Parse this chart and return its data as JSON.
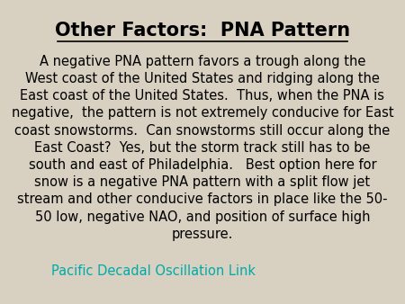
{
  "title": "Other Factors:  PNA Pattern",
  "body_text": "A negative PNA pattern favors a trough along the\nWest coast of the United States and ridging along the\nEast coast of the United States.  Thus, when the PNA is\nnegative,  the pattern is not extremely conducive for East\ncoast snowstorms.  Can snowstorms still occur along the\nEast Coast?  Yes, but the storm track still has to be\nsouth and east of Philadelphia.   Best option here for\nsnow is a negative PNA pattern with a split flow jet\nstream and other conducive factors in place like the 50-\n50 low, negative NAO, and position of surface high\npressure.",
  "link_text": "Pacific Decadal Oscillation Link",
  "background_color": "#d8d0c0",
  "title_color": "#000000",
  "body_color": "#000000",
  "link_color": "#00aaaa",
  "title_fontsize": 15,
  "body_fontsize": 10.5,
  "link_fontsize": 10.5
}
